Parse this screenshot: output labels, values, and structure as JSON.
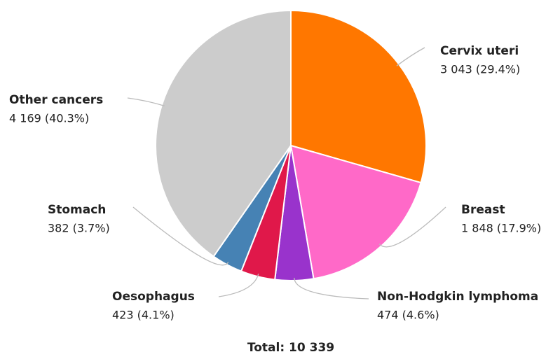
{
  "chart_data": {
    "type": "pie",
    "categories": [
      "Cervix uteri",
      "Breast",
      "Non-Hodgkin lymphoma",
      "Oesophagus",
      "Stomach",
      "Other cancers"
    ],
    "values": [
      3043,
      1848,
      474,
      423,
      382,
      4169
    ],
    "value_labels": [
      "3 043 (29.4%)",
      "1 848 (17.9%)",
      "474 (4.6%)",
      "423 (4.1%)",
      "382 (3.7%)",
      "4 169 (40.3%)"
    ],
    "colors": [
      "#ff7700",
      "#ff69c8",
      "#9933cc",
      "#e0184a",
      "#4682b4",
      "#cccccc"
    ],
    "total_label": "Total: 10 339"
  }
}
